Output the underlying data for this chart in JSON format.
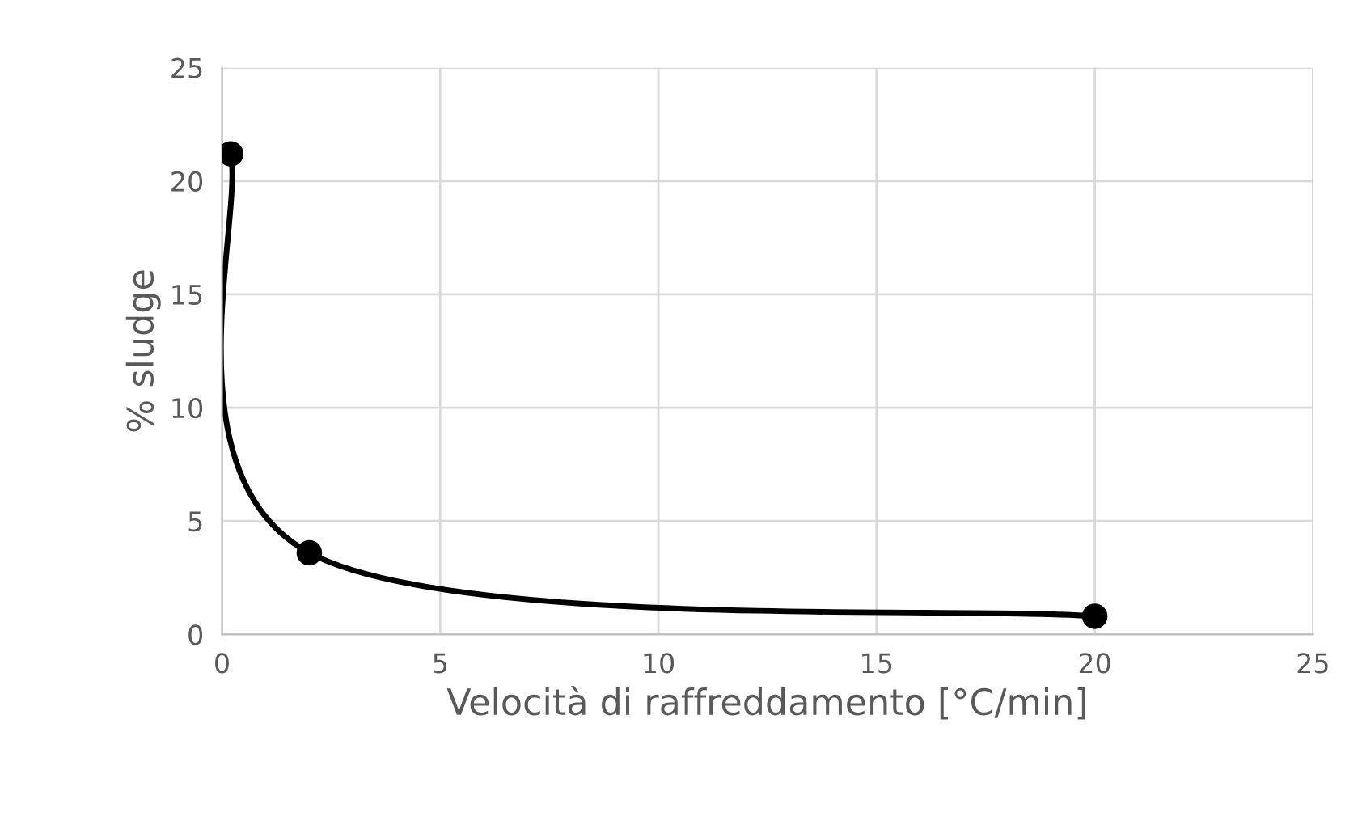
{
  "chart_data": {
    "type": "line",
    "xlabel": "Velocità di raffreddamento [°C/min]",
    "ylabel": "% sludge",
    "x": [
      0.2,
      2,
      20
    ],
    "series": [
      {
        "color": "#000000",
        "values": [
          21.2,
          3.6,
          0.8
        ]
      }
    ],
    "xlim": [
      0,
      25
    ],
    "xticks": [
      0,
      5,
      10,
      15,
      20,
      25
    ],
    "ylim": [
      0,
      25
    ],
    "yticks": [
      0,
      5,
      10,
      15,
      20,
      25
    ],
    "grid": true,
    "marker": "circle",
    "line_style": "solid"
  }
}
